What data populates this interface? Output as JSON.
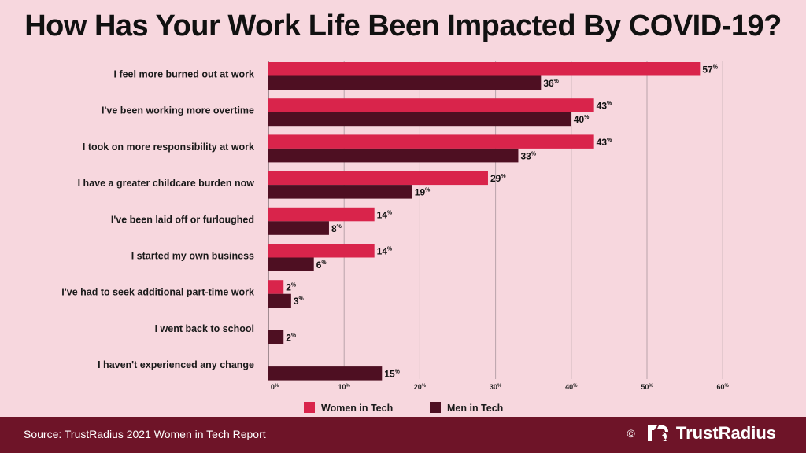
{
  "title": "How Has Your Work Life Been Impacted By COVID-19?",
  "footer": {
    "source": "Source: TrustRadius 2021 Women in Tech Report",
    "copyright": "©",
    "brand": "TrustRadius"
  },
  "colors": {
    "women": "#d9244b",
    "men": "#4e0f22",
    "background": "#f7d7de",
    "footer": "#6e1428"
  },
  "chart_data": {
    "type": "bar",
    "orientation": "horizontal",
    "categories": [
      "I feel more burned out at work",
      "I've been working more overtime",
      "I took on more responsibility at work",
      "I have a greater childcare burden now",
      "I've been laid off or furloughed",
      "I started my own business",
      "I've had to seek additional part-time work",
      "I went back to school",
      "I haven't experienced any change"
    ],
    "series": [
      {
        "name": "Women in Tech",
        "values": [
          57,
          43,
          43,
          29,
          14,
          14,
          2,
          null,
          null
        ]
      },
      {
        "name": "Men in Tech",
        "values": [
          36,
          40,
          33,
          19,
          8,
          6,
          3,
          2,
          15
        ]
      }
    ],
    "value_suffix": "%",
    "xlim": [
      0,
      60
    ],
    "xticks": [
      0,
      10,
      20,
      30,
      40,
      50,
      60
    ],
    "grid": true,
    "legend": "bottom"
  }
}
